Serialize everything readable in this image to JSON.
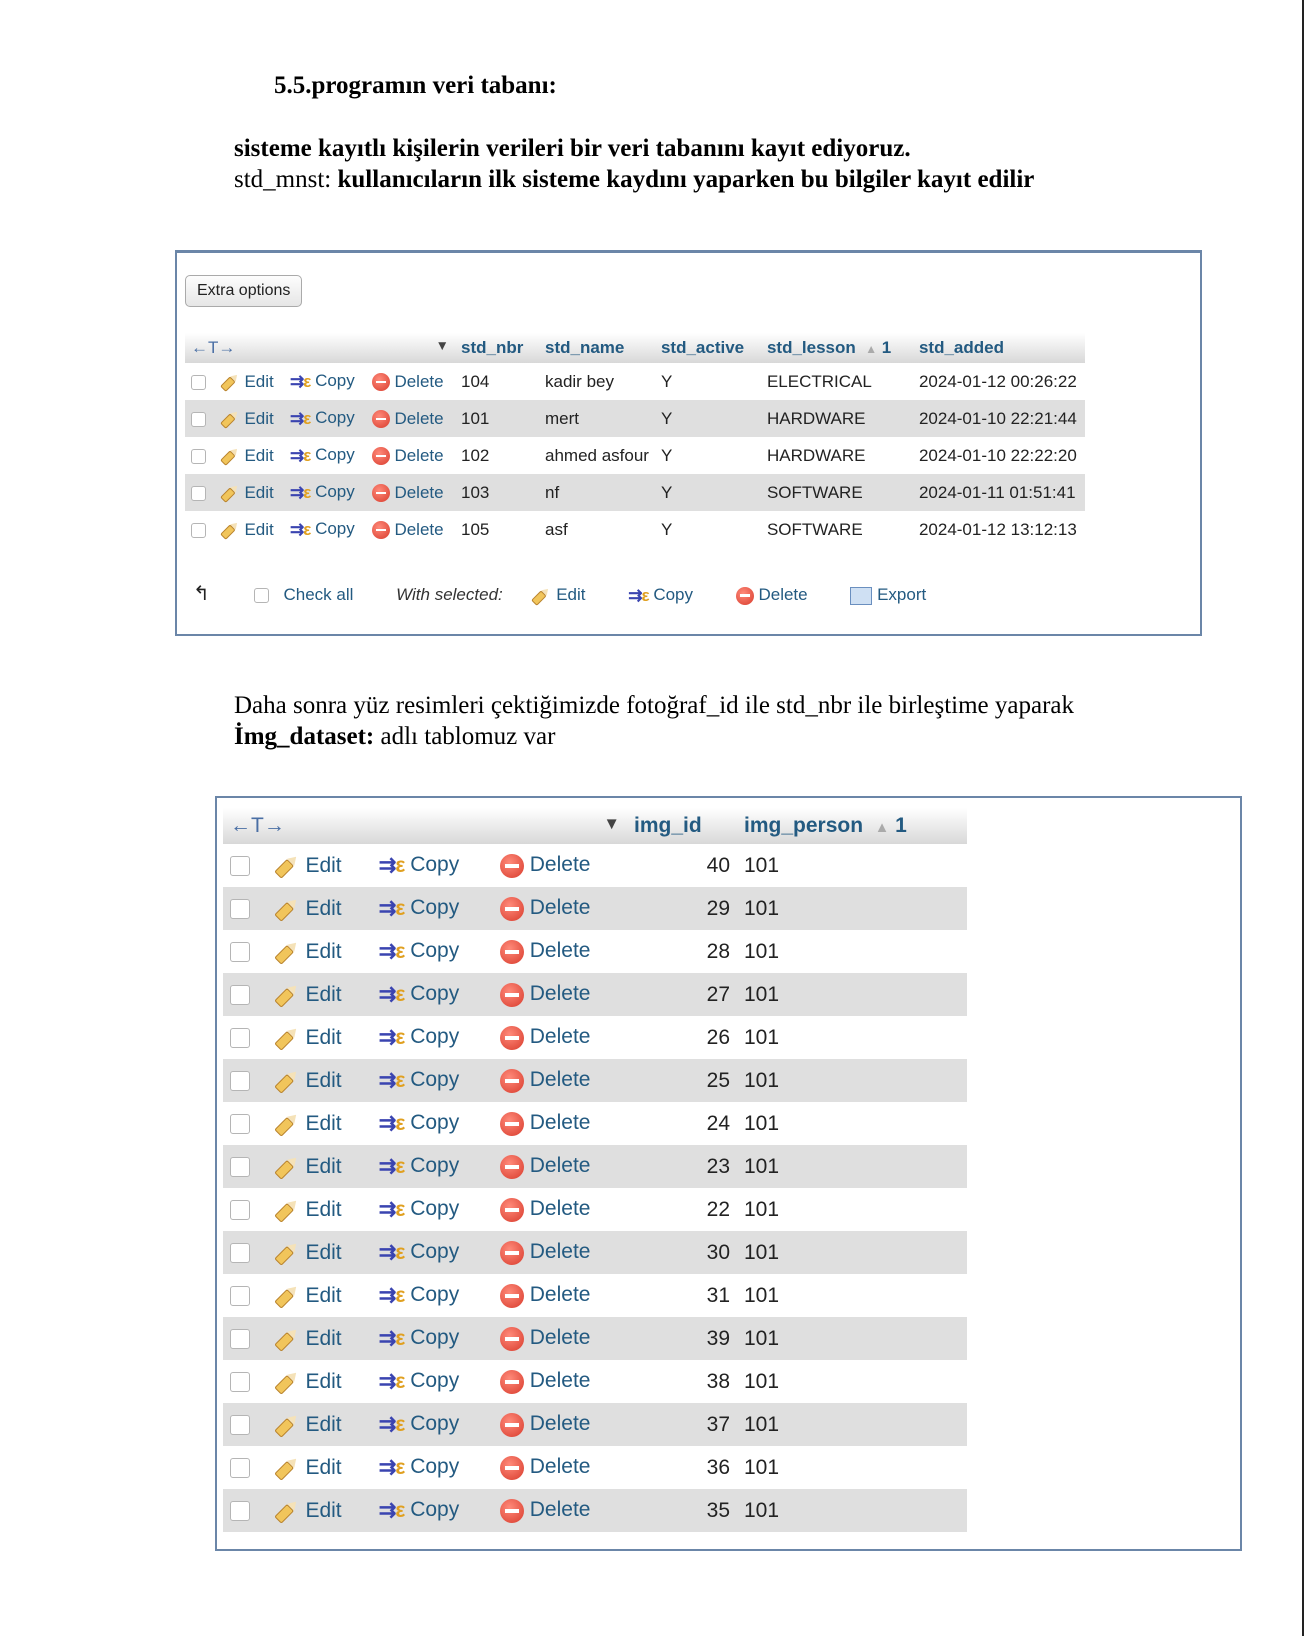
{
  "doc": {
    "heading": "5.5.programın veri tabanı:",
    "para1_line1": "sisteme kayıtlı kişilerin verileri bir veri tabanını kayıt ediyoruz.",
    "para1_line2_prefix": "std_mnst: ",
    "para1_line2_bold": "kullanıcıların ilk sisteme kaydını yaparken bu bilgiler kayıt edilir",
    "para2_line1": "Daha sonra yüz resimleri çektiğimizde fotoğraf_id ile std_nbr ile birleştime yaparak",
    "para2_line2_bold": "İmg_dataset:",
    "para2_line2_rest": " adlı tablomuz var"
  },
  "table1": {
    "extra_options": "Extra options",
    "arrows": "←T→",
    "sort_down": "▼",
    "columns": [
      "std_nbr",
      "std_name",
      "std_active",
      "std_lesson",
      "std_added"
    ],
    "sort_up": "▲",
    "sort_index": "1",
    "actions": {
      "edit": "Edit",
      "copy": "Copy",
      "delete": "Delete"
    },
    "rows": [
      {
        "std_nbr": "104",
        "std_name": "kadir bey",
        "std_active": "Y",
        "std_lesson": "ELECTRICAL",
        "std_added": "2024-01-12 00:26:22"
      },
      {
        "std_nbr": "101",
        "std_name": "mert",
        "std_active": "Y",
        "std_lesson": "HARDWARE",
        "std_added": "2024-01-10 22:21:44"
      },
      {
        "std_nbr": "102",
        "std_name": "ahmed asfour",
        "std_active": "Y",
        "std_lesson": "HARDWARE",
        "std_added": "2024-01-10 22:22:20"
      },
      {
        "std_nbr": "103",
        "std_name": "nf",
        "std_active": "Y",
        "std_lesson": "SOFTWARE",
        "std_added": "2024-01-11 01:51:41"
      },
      {
        "std_nbr": "105",
        "std_name": "asf",
        "std_active": "Y",
        "std_lesson": "SOFTWARE",
        "std_added": "2024-01-12 13:12:13"
      }
    ],
    "footer": {
      "check_all": "Check all",
      "with_selected": "With selected:",
      "edit": "Edit",
      "copy": "Copy",
      "delete": "Delete",
      "export": "Export"
    }
  },
  "table2": {
    "arrows": "←T→",
    "sort_down": "▼",
    "columns": [
      "img_id",
      "img_person"
    ],
    "sort_up": "▲",
    "sort_index": "1",
    "actions": {
      "edit": "Edit",
      "copy": "Copy",
      "delete": "Delete"
    },
    "rows": [
      {
        "img_id": "40",
        "img_person": "101"
      },
      {
        "img_id": "29",
        "img_person": "101"
      },
      {
        "img_id": "28",
        "img_person": "101"
      },
      {
        "img_id": "27",
        "img_person": "101"
      },
      {
        "img_id": "26",
        "img_person": "101"
      },
      {
        "img_id": "25",
        "img_person": "101"
      },
      {
        "img_id": "24",
        "img_person": "101"
      },
      {
        "img_id": "23",
        "img_person": "101"
      },
      {
        "img_id": "22",
        "img_person": "101"
      },
      {
        "img_id": "30",
        "img_person": "101"
      },
      {
        "img_id": "31",
        "img_person": "101"
      },
      {
        "img_id": "39",
        "img_person": "101"
      },
      {
        "img_id": "38",
        "img_person": "101"
      },
      {
        "img_id": "37",
        "img_person": "101"
      },
      {
        "img_id": "36",
        "img_person": "101"
      },
      {
        "img_id": "35",
        "img_person": "101"
      }
    ]
  }
}
